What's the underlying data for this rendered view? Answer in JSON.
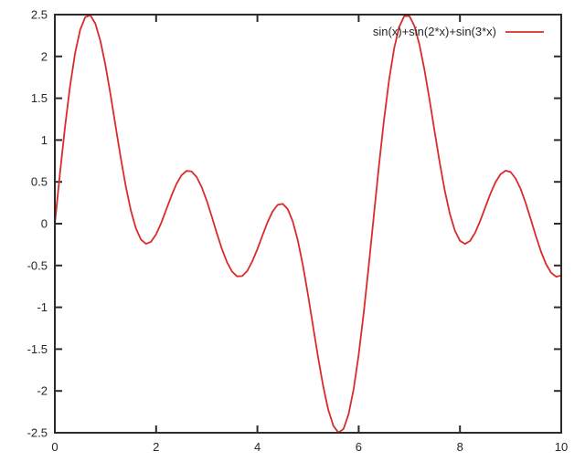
{
  "chart_data": {
    "type": "line",
    "title": "",
    "xlabel": "",
    "ylabel": "",
    "xlim": [
      0,
      10
    ],
    "ylim": [
      -2.5,
      2.5
    ],
    "xticks": [
      0,
      2,
      4,
      6,
      8,
      10
    ],
    "yticks": [
      -2.5,
      -2,
      -1.5,
      -1,
      -0.5,
      0,
      0.5,
      1,
      1.5,
      2,
      2.5
    ],
    "grid": false,
    "legend_position": "top-right-inside",
    "axis_color": "#2b2b2b",
    "background_color": "#ffffff",
    "text_color": "#262626",
    "series": [
      {
        "name": "sin(x)+sin(2*x)+sin(3*x)",
        "color": "#d92b2b",
        "x": [
          0,
          0.1,
          0.2,
          0.3,
          0.4,
          0.5,
          0.6,
          0.7,
          0.8,
          0.9,
          1.0,
          1.1,
          1.2,
          1.3,
          1.4,
          1.5,
          1.6,
          1.7,
          1.8,
          1.9,
          2.0,
          2.1,
          2.2,
          2.3,
          2.4,
          2.5,
          2.6,
          2.7,
          2.8,
          2.9,
          3.0,
          3.1,
          3.2,
          3.3,
          3.4,
          3.5,
          3.6,
          3.7,
          3.8,
          3.9,
          4.0,
          4.1,
          4.2,
          4.3,
          4.4,
          4.5,
          4.6,
          4.7,
          4.8,
          4.9,
          5.0,
          5.1,
          5.2,
          5.3,
          5.4,
          5.5,
          5.6,
          5.7,
          5.8,
          5.9,
          6.0,
          6.1,
          6.2,
          6.3,
          6.4,
          6.5,
          6.6,
          6.7,
          6.8,
          6.9,
          7.0,
          7.1,
          7.2,
          7.3,
          7.4,
          7.5,
          7.6,
          7.7,
          7.8,
          7.9,
          8.0,
          8.1,
          8.2,
          8.3,
          8.4,
          8.5,
          8.6,
          8.7,
          8.8,
          8.9,
          9.0,
          9.1,
          9.2,
          9.3,
          9.4,
          9.5,
          9.6,
          9.7,
          9.8,
          9.9,
          10.0
        ],
        "y": [
          0.0,
          0.594,
          1.153,
          1.643,
          2.039,
          2.318,
          2.47,
          2.493,
          2.392,
          2.185,
          1.892,
          1.542,
          1.165,
          0.791,
          0.449,
          0.161,
          -0.055,
          -0.19,
          -0.241,
          -0.216,
          -0.127,
          0.008,
          0.168,
          0.33,
          0.473,
          0.578,
          0.631,
          0.625,
          0.558,
          0.438,
          0.274,
          0.083,
          -0.116,
          -0.304,
          -0.46,
          -0.573,
          -0.63,
          -0.626,
          -0.565,
          -0.449,
          -0.304,
          -0.141,
          0.017,
          0.146,
          0.225,
          0.238,
          0.173,
          0.024,
          -0.205,
          -0.503,
          -0.853,
          -1.23,
          -1.604,
          -1.946,
          -2.226,
          -2.417,
          -2.498,
          -2.455,
          -2.28,
          -1.98,
          -1.567,
          -1.063,
          -0.496,
          0.101,
          0.691,
          1.241,
          1.717,
          2.094,
          2.353,
          2.483,
          2.484,
          2.365,
          2.141,
          1.837,
          1.481,
          1.101,
          0.731,
          0.396,
          0.119,
          -0.083,
          -0.204,
          -0.242,
          -0.206,
          -0.107,
          0.034,
          0.196,
          0.356,
          0.494,
          0.591,
          0.634,
          0.618,
          0.539,
          0.413,
          0.243,
          0.05,
          -0.149,
          -0.333,
          -0.483,
          -0.587,
          -0.634,
          -0.619
        ]
      }
    ]
  }
}
